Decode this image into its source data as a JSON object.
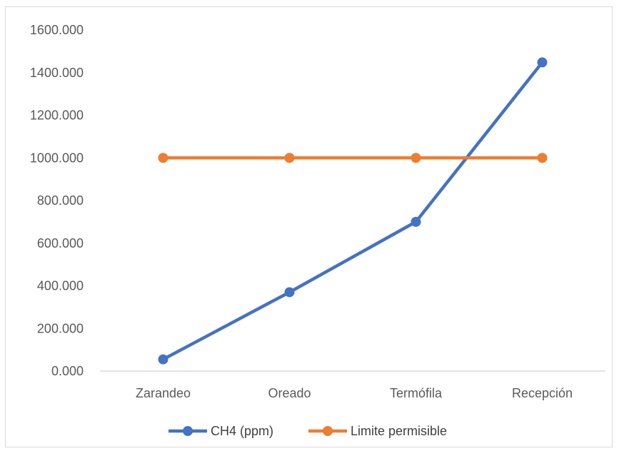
{
  "chart_data": {
    "type": "line",
    "title": "",
    "xlabel": "",
    "ylabel": "",
    "categories": [
      "Zarandeo",
      "Oreado",
      "Termófila",
      "Recepción"
    ],
    "ylim": [
      0,
      1600
    ],
    "yticks": [
      0,
      200,
      400,
      600,
      800,
      1000,
      1200,
      1400,
      1600
    ],
    "ytick_labels": [
      "0.000",
      "200.000",
      "400.000",
      "600.000",
      "800.000",
      "1000.000",
      "1200.000",
      "1400.000",
      "1600.000"
    ],
    "grid": false,
    "legend_position": "bottom",
    "series": [
      {
        "name": "CH4 (ppm)",
        "color": "#4472c4",
        "values": [
          55,
          370,
          700,
          1448
        ]
      },
      {
        "name": "Limite permisible",
        "color": "#ed7d31",
        "values": [
          1000,
          1000,
          1000,
          1000
        ]
      }
    ]
  }
}
